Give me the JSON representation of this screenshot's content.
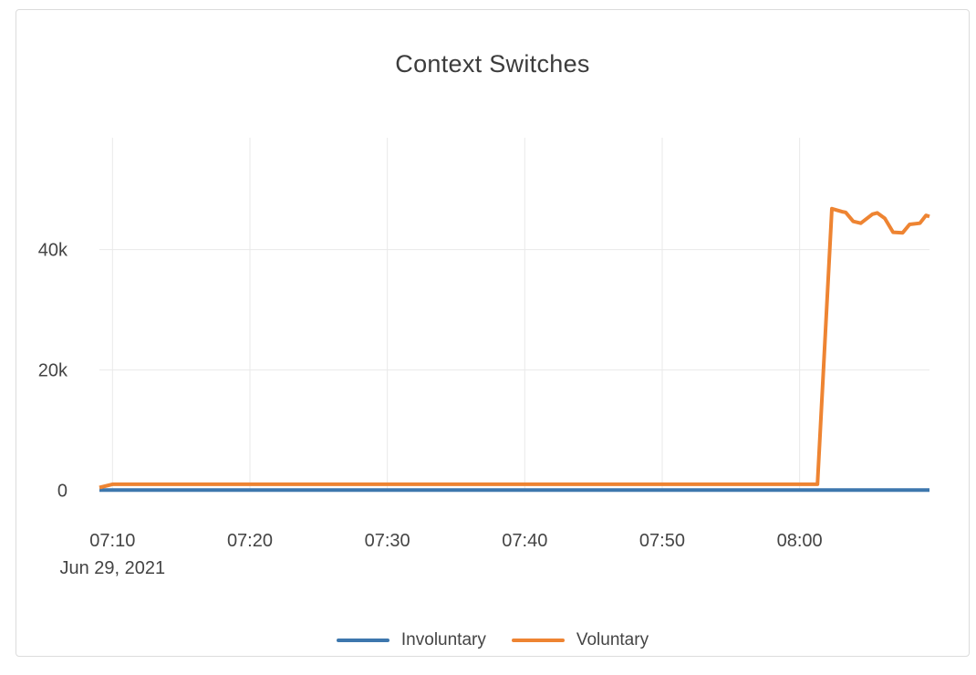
{
  "card": {
    "background": "#ffffff",
    "border_color": "#dcdcdc"
  },
  "chart_data": {
    "type": "line",
    "title": "Context Switches",
    "x_axis": {
      "unit": "minutes after 07:00 (Jun 29, 2021)",
      "range_minutes": [
        9.05,
        69.45
      ],
      "ticks": [
        {
          "t": 10,
          "label": "07:10"
        },
        {
          "t": 20,
          "label": "07:20"
        },
        {
          "t": 30,
          "label": "07:30"
        },
        {
          "t": 40,
          "label": "07:40"
        },
        {
          "t": 50,
          "label": "07:50"
        },
        {
          "t": 60,
          "label": "08:00"
        }
      ],
      "date_sublabel": "Jun 29, 2021",
      "grid": true
    },
    "y_axis": {
      "range": [
        0,
        58600
      ],
      "ticks": [
        {
          "v": 0,
          "label": "0"
        },
        {
          "v": 20000,
          "label": "20k"
        },
        {
          "v": 40000,
          "label": "40k"
        }
      ],
      "grid": true
    },
    "series": [
      {
        "name": "Involuntary",
        "color": "#3d77ad",
        "points": [
          [
            9.05,
            50
          ],
          [
            69.45,
            50
          ]
        ]
      },
      {
        "name": "Voluntary",
        "color": "#ee8432",
        "points": [
          [
            9.05,
            450
          ],
          [
            10.0,
            1000
          ],
          [
            61.3,
            1000
          ],
          [
            62.35,
            46800
          ],
          [
            63.1,
            46300
          ],
          [
            63.35,
            46200
          ],
          [
            63.9,
            44700
          ],
          [
            64.45,
            44400
          ],
          [
            65.3,
            45900
          ],
          [
            65.65,
            46100
          ],
          [
            66.2,
            45200
          ],
          [
            66.8,
            42900
          ],
          [
            67.5,
            42800
          ],
          [
            68.0,
            44200
          ],
          [
            68.75,
            44400
          ],
          [
            69.2,
            45700
          ],
          [
            69.45,
            45500
          ]
        ]
      }
    ],
    "legend_position": "bottom-center",
    "colors": {
      "text": "#444444",
      "grid": "#e9e9e9"
    }
  }
}
